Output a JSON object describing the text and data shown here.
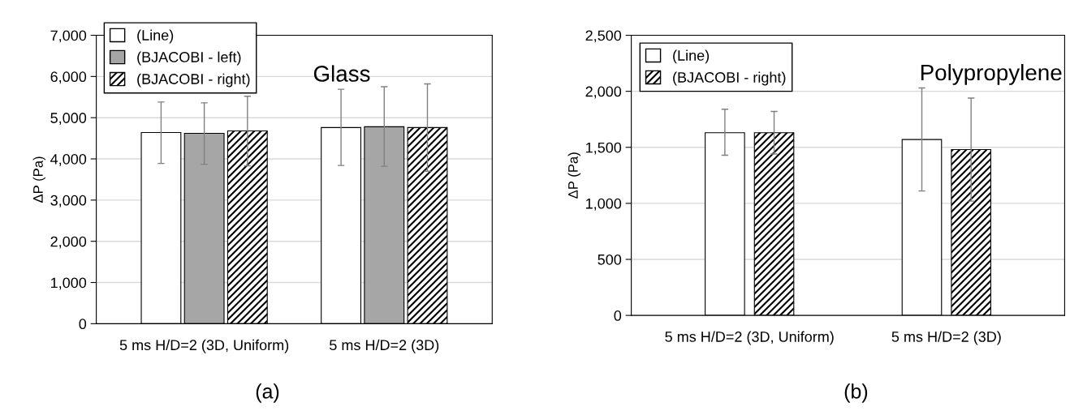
{
  "chart_data": [
    {
      "type": "bar",
      "ylabel": "ΔP (Pa)",
      "categories": [
        "5 ms H/D=2 (3D, Uniform)",
        "5 ms H/D=2 (3D)"
      ],
      "series": [
        {
          "name": "(Line)",
          "color": "#ffffff",
          "values": [
            4640,
            4760
          ],
          "errors": [
            [
              3890,
              5380
            ],
            [
              3840,
              5690
            ]
          ]
        },
        {
          "name": "(BJACOBI - left)",
          "color": "#a6a6a6",
          "values": [
            4620,
            4780
          ],
          "errors": [
            [
              3870,
              5360
            ],
            [
              3820,
              5750
            ]
          ]
        },
        {
          "name": "(BJACOBI - right)",
          "color": "#000000",
          "values": [
            4680,
            4760
          ],
          "errors": [
            [
              3830,
              5520
            ],
            [
              3700,
              5820
            ]
          ]
        }
      ],
      "ylim": [
        0,
        7000
      ],
      "yticks": [
        0,
        {
          "value": 1000,
          "label": "1,000"
        },
        {
          "value": 2000,
          "label": "2,000"
        },
        {
          "value": 3000,
          "label": "3,000"
        },
        {
          "value": 4000,
          "label": "4,000"
        },
        {
          "value": 5000,
          "label": "5,000"
        },
        {
          "value": 6000,
          "label": "6,000"
        },
        {
          "value": 7000,
          "label": "7,000"
        }
      ],
      "grid": "y",
      "legend": "top left",
      "annotations": [
        "Glass",
        "(a)"
      ]
    },
    {
      "type": "bar",
      "ylabel": "ΔP (Pa)",
      "categories": [
        "5 ms H/D=2 (3D, Uniform)",
        "5 ms H/D=2 (3D)"
      ],
      "series": [
        {
          "name": "(Line)",
          "color": "#ffffff",
          "values": [
            1630,
            1570
          ],
          "errors": [
            [
              1430,
              1840
            ],
            [
              1110,
              2030
            ]
          ]
        },
        {
          "name": "(BJACOBI - right)",
          "color": "#000000",
          "values": [
            1630,
            1480
          ],
          "errors": [
            [
              1440,
              1820
            ],
            [
              1020,
              1940
            ]
          ]
        }
      ],
      "ylim": [
        0,
        2500
      ],
      "yticks": [
        0,
        500,
        {
          "value": 1000,
          "label": "1,000"
        },
        {
          "value": 1500,
          "label": "1,500"
        },
        {
          "value": 2000,
          "label": "2,000"
        },
        {
          "value": 2500,
          "label": "2,500"
        }
      ],
      "grid": "y",
      "legend": "top left",
      "annotations": [
        "Polypropylene",
        "(b)"
      ]
    }
  ]
}
